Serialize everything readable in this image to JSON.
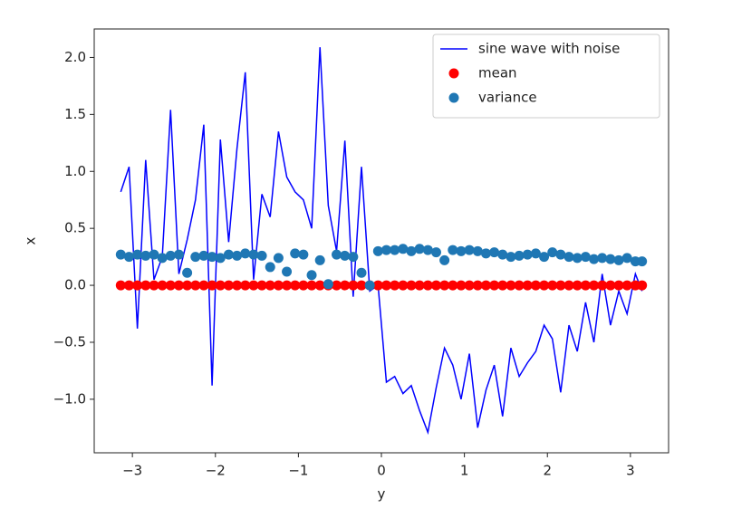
{
  "chart_data": {
    "type": "line",
    "xlabel": "y",
    "ylabel": "x",
    "legend": "upper right",
    "x": [
      -3.14,
      -3.04,
      -2.94,
      -2.84,
      -2.74,
      -2.64,
      -2.54,
      -2.44,
      -2.34,
      -2.24,
      -2.14,
      -2.04,
      -1.94,
      -1.84,
      -1.74,
      -1.64,
      -1.54,
      -1.44,
      -1.34,
      -1.24,
      -1.14,
      -1.04,
      -0.94,
      -0.84,
      -0.74,
      -0.64,
      -0.54,
      -0.44,
      -0.34,
      -0.24,
      -0.14,
      -0.04,
      0.06,
      0.16,
      0.26,
      0.36,
      0.46,
      0.56,
      0.66,
      0.76,
      0.86,
      0.96,
      1.06,
      1.16,
      1.26,
      1.36,
      1.46,
      1.56,
      1.66,
      1.76,
      1.86,
      1.96,
      2.06,
      2.16,
      2.26,
      2.36,
      2.46,
      2.56,
      2.66,
      2.76,
      2.86,
      2.96,
      3.06,
      3.14
    ],
    "series": [
      {
        "name": "sine wave with noise",
        "type": "line",
        "color": "#0000ff",
        "values": [
          0.82,
          1.04,
          -0.38,
          1.1,
          0.05,
          0.25,
          1.54,
          0.1,
          0.4,
          0.75,
          1.41,
          -0.88,
          1.28,
          0.38,
          1.2,
          1.87,
          0.05,
          0.8,
          0.6,
          1.35,
          0.95,
          0.82,
          0.75,
          0.5,
          2.09,
          0.7,
          0.3,
          1.27,
          -0.1,
          1.04,
          -0.05,
          0.0,
          -0.85,
          -0.8,
          -0.95,
          -0.88,
          -1.1,
          -1.29,
          -0.9,
          -0.55,
          -0.7,
          -1.0,
          -0.6,
          -1.25,
          -0.92,
          -0.7,
          -1.15,
          -0.55,
          -0.8,
          -0.68,
          -0.58,
          -0.35,
          -0.47,
          -0.94,
          -0.35,
          -0.58,
          -0.15,
          -0.5,
          0.1,
          -0.35,
          -0.05,
          -0.25,
          0.1,
          -0.05
        ]
      },
      {
        "name": "mean",
        "type": "scatter",
        "color": "#ff0000",
        "values": [
          0,
          0,
          0,
          0,
          0,
          0,
          0,
          0,
          0,
          0,
          0,
          0,
          0,
          0,
          0,
          0,
          0,
          0,
          0,
          0,
          0,
          0,
          0,
          0,
          0,
          0,
          0,
          0,
          0,
          0,
          0,
          0,
          0,
          0,
          0,
          0,
          0,
          0,
          0,
          0,
          0,
          0,
          0,
          0,
          0,
          0,
          0,
          0,
          0,
          0,
          0,
          0,
          0,
          0,
          0,
          0,
          0,
          0,
          0,
          0,
          0,
          0,
          0,
          0
        ]
      },
      {
        "name": "variance",
        "type": "scatter",
        "color": "#1f77b4",
        "values": [
          0.27,
          0.25,
          0.27,
          0.26,
          0.27,
          0.24,
          0.26,
          0.27,
          0.11,
          0.25,
          0.26,
          0.25,
          0.24,
          0.27,
          0.26,
          0.28,
          0.27,
          0.26,
          0.16,
          0.24,
          0.12,
          0.28,
          0.27,
          0.09,
          0.22,
          0.01,
          0.27,
          0.26,
          0.25,
          0.11,
          0.0,
          0.3,
          0.31,
          0.31,
          0.32,
          0.3,
          0.32,
          0.31,
          0.29,
          0.22,
          0.31,
          0.3,
          0.31,
          0.3,
          0.28,
          0.29,
          0.27,
          0.25,
          0.26,
          0.27,
          0.28,
          0.25,
          0.29,
          0.27,
          0.25,
          0.24,
          0.25,
          0.23,
          0.24,
          0.23,
          0.22,
          0.24,
          0.21,
          0.21
        ]
      }
    ],
    "xlim": [
      -3.46,
      3.46
    ],
    "ylim": [
      -1.47,
      2.25
    ],
    "xticks": [
      {
        "value": -3,
        "label": "−3"
      },
      {
        "value": -2,
        "label": "−2"
      },
      {
        "value": -1,
        "label": "−1"
      },
      0,
      1,
      2,
      3
    ],
    "yticks": [
      {
        "value": -1.0,
        "label": "−1.0"
      },
      {
        "value": -0.5,
        "label": "−0.5"
      },
      {
        "value": 0.0,
        "label": "0.0"
      },
      0.5,
      {
        "value": 1.0,
        "label": "1.0"
      },
      1.5,
      {
        "value": 2.0,
        "label": "2.0"
      }
    ]
  }
}
